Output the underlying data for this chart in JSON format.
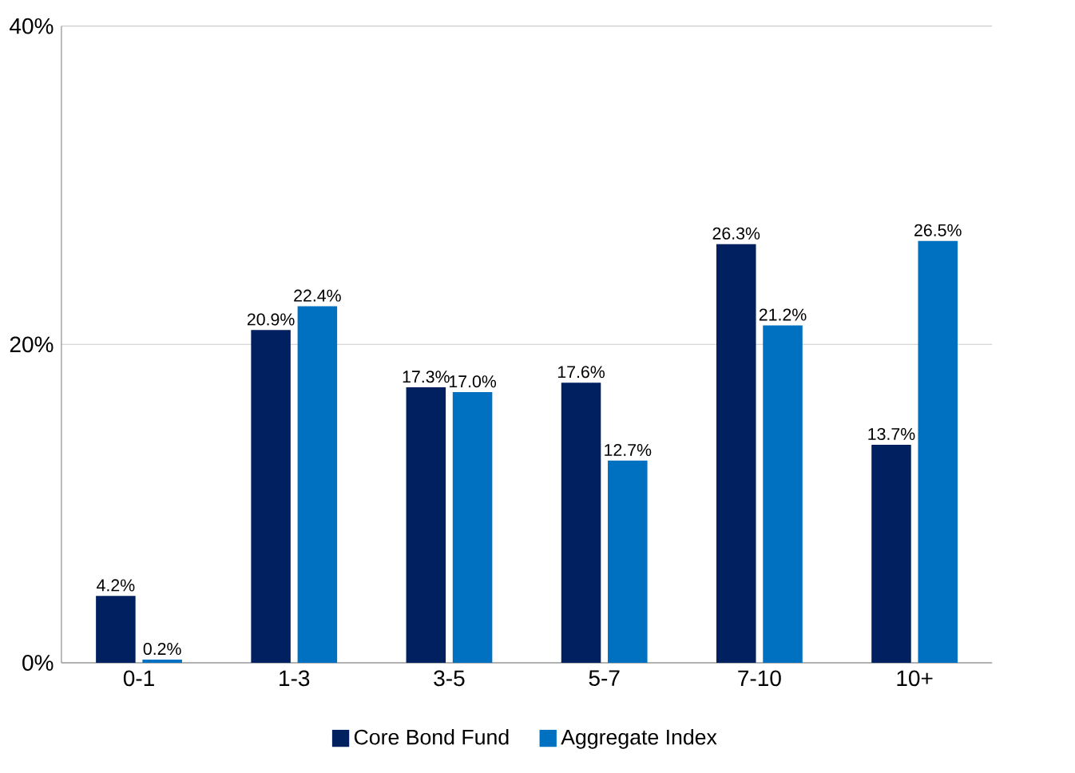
{
  "chart_data": {
    "type": "bar",
    "categories": [
      "0-1",
      "1-3",
      "3-5",
      "5-7",
      "7-10",
      "10+"
    ],
    "series": [
      {
        "name": "Core Bond Fund",
        "color": "#002060",
        "values": [
          4.2,
          20.9,
          17.3,
          17.6,
          26.3,
          13.7
        ],
        "value_labels": [
          "4.2%",
          "20.9%",
          "17.3%",
          "17.6%",
          "26.3%",
          "13.7%"
        ]
      },
      {
        "name": "Aggregate Index",
        "color": "#0070c0",
        "values": [
          0.2,
          22.4,
          17.0,
          12.7,
          21.2,
          26.5
        ],
        "value_labels": [
          "0.2%",
          "22.4%",
          "17.0%",
          "12.7%",
          "21.2%",
          "26.5%"
        ]
      }
    ],
    "ylim": [
      0,
      40
    ],
    "yticks": [
      {
        "value": 0,
        "label": "0%"
      },
      {
        "value": 20,
        "label": "20%"
      },
      {
        "value": 40,
        "label": "40%"
      }
    ],
    "grid": "y",
    "legend": "bottom"
  }
}
